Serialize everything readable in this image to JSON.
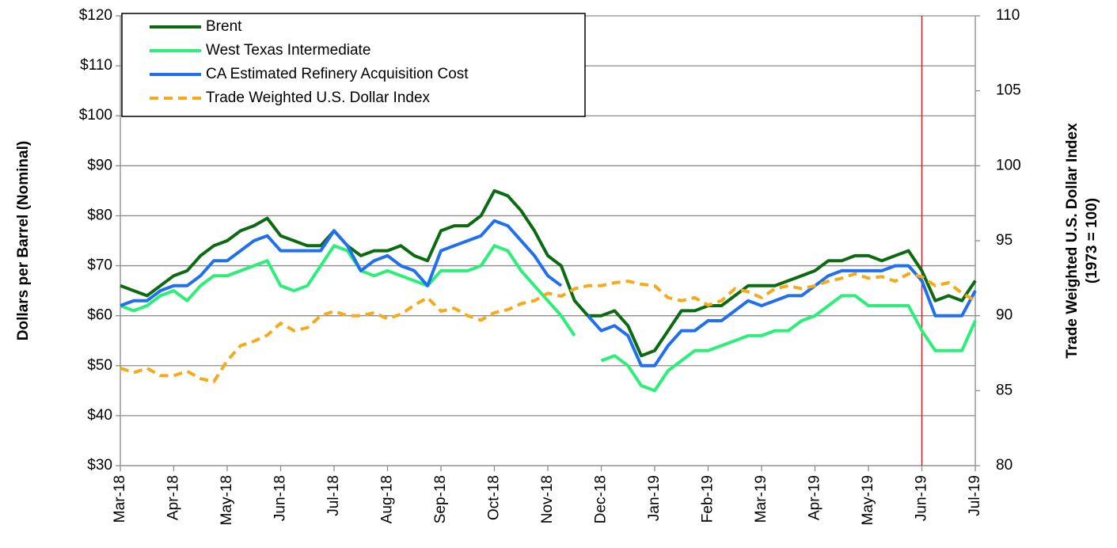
{
  "chart_data": {
    "type": "line",
    "ylabel": "Dollars per Barrel (Nominal)",
    "y2label": [
      "Trade Weighted U.S. Dollar Index",
      "(1973 = 100)"
    ],
    "xlim": [
      0,
      16
    ],
    "xticks": [
      {
        "value": 0,
        "label": "Mar-18"
      },
      {
        "value": 1,
        "label": "Apr-18"
      },
      {
        "value": 2,
        "label": "May-18"
      },
      {
        "value": 3,
        "label": "Jun-18"
      },
      {
        "value": 4,
        "label": "Jul-18"
      },
      {
        "value": 5,
        "label": "Aug-18"
      },
      {
        "value": 6,
        "label": "Sep-18"
      },
      {
        "value": 7,
        "label": "Oct-18"
      },
      {
        "value": 8,
        "label": "Nov-18"
      },
      {
        "value": 9,
        "label": "Dec-18"
      },
      {
        "value": 10,
        "label": "Jan-19"
      },
      {
        "value": 11,
        "label": "Feb-19"
      },
      {
        "value": 12,
        "label": "Mar-19"
      },
      {
        "value": 13,
        "label": "Apr-19"
      },
      {
        "value": 14,
        "label": "May-19"
      },
      {
        "value": 15,
        "label": "Jun-19"
      },
      {
        "value": 16,
        "label": "Jul-19"
      }
    ],
    "ylim": [
      30,
      120
    ],
    "yticks": [
      {
        "value": 30,
        "label": "$30"
      },
      {
        "value": 40,
        "label": "$40"
      },
      {
        "value": 50,
        "label": "$50"
      },
      {
        "value": 60,
        "label": "$60"
      },
      {
        "value": 70,
        "label": "$70"
      },
      {
        "value": 80,
        "label": "$80"
      },
      {
        "value": 90,
        "label": "$90"
      },
      {
        "value": 100,
        "label": "$100"
      },
      {
        "value": 110,
        "label": "$110"
      },
      {
        "value": 120,
        "label": "$120"
      }
    ],
    "y2lim": [
      80,
      110
    ],
    "y2ticks": [
      80,
      85,
      90,
      95,
      100,
      105,
      110
    ],
    "grid": true,
    "legend": "top-left",
    "vline": {
      "x": 15,
      "color": "#e8141b"
    },
    "x": [
      0,
      0.25,
      0.5,
      0.75,
      1,
      1.25,
      1.5,
      1.75,
      2,
      2.25,
      2.5,
      2.75,
      3,
      3.25,
      3.5,
      3.75,
      4,
      4.25,
      4.5,
      4.75,
      5,
      5.25,
      5.5,
      5.75,
      6,
      6.25,
      6.5,
      6.75,
      7,
      7.25,
      7.5,
      7.75,
      8,
      8.25,
      8.5,
      8.75,
      9,
      9.25,
      9.5,
      9.75,
      10,
      10.25,
      10.5,
      10.75,
      11,
      11.25,
      11.5,
      11.75,
      12,
      12.25,
      12.5,
      12.75,
      13,
      13.25,
      13.5,
      13.75,
      14,
      14.25,
      14.5,
      14.75,
      15,
      15.25,
      15.5,
      15.75,
      16
    ],
    "series": [
      {
        "name": "Brent",
        "color": "#0c6a12",
        "dashed": false,
        "values": [
          66,
          65,
          64,
          66,
          68,
          69,
          72,
          74,
          75,
          77,
          78,
          79.5,
          76,
          75,
          74,
          74,
          77,
          74,
          72,
          73,
          73,
          74,
          72,
          71,
          77,
          78,
          78,
          80,
          85,
          84,
          81,
          77,
          72,
          70,
          63,
          60,
          60,
          61,
          58,
          52,
          53,
          57,
          61,
          61,
          62,
          62,
          64,
          66,
          66,
          66,
          67,
          68,
          69,
          71,
          71,
          72,
          72,
          71,
          72,
          73,
          69,
          63,
          64,
          63,
          67
        ]
      },
      {
        "name": "West Texas Intermediate",
        "color": "#2bef78",
        "dashed": false,
        "values": [
          62,
          61,
          62,
          64,
          65,
          63,
          66,
          68,
          68,
          69,
          70,
          71,
          66,
          65,
          66,
          70,
          74,
          73,
          69,
          68,
          69,
          68,
          67,
          66,
          69,
          69,
          69,
          70,
          74,
          73,
          69,
          66,
          63,
          60,
          56,
          null,
          51,
          52,
          50,
          46,
          45,
          49,
          51,
          53,
          53,
          54,
          55,
          56,
          56,
          57,
          57,
          59,
          60,
          62,
          64,
          64,
          62,
          62,
          62,
          62,
          57,
          53,
          53,
          53,
          59
        ]
      },
      {
        "name": "CA Estimated Refinery Acquisition Cost",
        "color": "#1f6fef",
        "dashed": false,
        "values": [
          62,
          63,
          63,
          65,
          66,
          66,
          68,
          71,
          71,
          73,
          75,
          76,
          73,
          73,
          73,
          73,
          77,
          74,
          69,
          71,
          72,
          70,
          69,
          66,
          73,
          74,
          75,
          76,
          79,
          78,
          75,
          72,
          68,
          66,
          null,
          60,
          57,
          58,
          56,
          50,
          50,
          54,
          57,
          57,
          59,
          59,
          61,
          63,
          62,
          63,
          64,
          64,
          66,
          68,
          69,
          69,
          69,
          69,
          70,
          70,
          67,
          60,
          60,
          60,
          65
        ]
      },
      {
        "name": "Trade Weighted U.S. Dollar Index",
        "color": "#f5aa1c",
        "dashed": true,
        "axis": "y2",
        "values": [
          86.5,
          86.2,
          86.5,
          86,
          86,
          86.3,
          85.8,
          85.6,
          87,
          88,
          88.3,
          88.7,
          89.5,
          89,
          89.2,
          90,
          90.3,
          90,
          90,
          90.2,
          89.8,
          90.1,
          90.7,
          91.2,
          90.3,
          90.5,
          90,
          89.7,
          90.2,
          90.4,
          90.8,
          91,
          91.5,
          91.3,
          91.8,
          92,
          92,
          92.2,
          92.3,
          92.1,
          92,
          91.2,
          91,
          91.2,
          90.7,
          91,
          91.8,
          91.6,
          91.2,
          91.8,
          92,
          91.8,
          92,
          92.3,
          92.5,
          92.8,
          92.5,
          92.6,
          92.3,
          92.8,
          92.6,
          92,
          92.2,
          91.5,
          91
        ]
      }
    ]
  }
}
